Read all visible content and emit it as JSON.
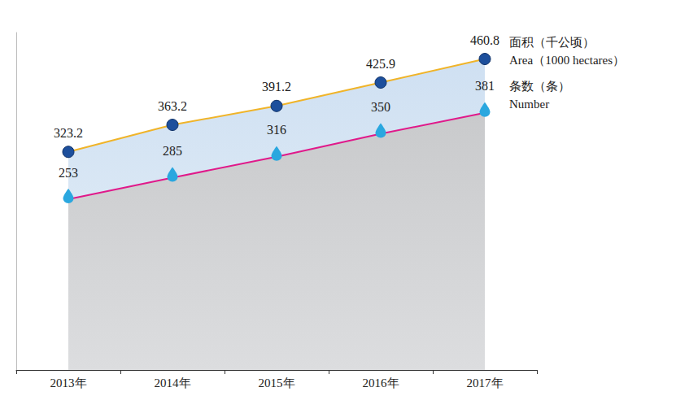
{
  "chart_data": {
    "type": "line",
    "categories": [
      "2013年",
      "2014年",
      "2015年",
      "2016年",
      "2017年"
    ],
    "series": [
      {
        "name": "面积（千公顷）",
        "name_en": "Area（1000 hectares）",
        "color": "#f0b429",
        "marker": "circle",
        "values": [
          323.2,
          363.2,
          391.2,
          425.9,
          460.8
        ]
      },
      {
        "name": "条数（条）",
        "name_en": "Number",
        "color": "#e0198a",
        "marker": "drop",
        "values": [
          253,
          285,
          316,
          350,
          381
        ]
      }
    ],
    "ylim": [
      0,
      500
    ],
    "data_labels": true,
    "tick_labels": "x",
    "grid": false
  }
}
